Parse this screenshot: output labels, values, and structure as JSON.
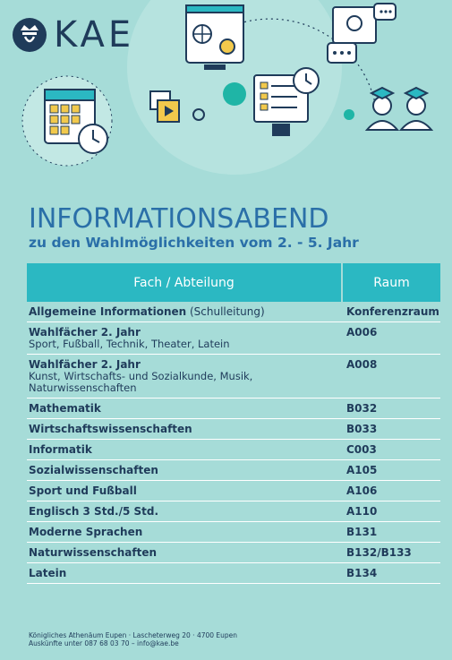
{
  "logo": {
    "text": "KAE",
    "emblem": "crown-emblem-icon"
  },
  "title": "INFORMATIONSABEND",
  "subtitle": "zu den Wahlmöglichkeiten vom 2. - 5. Jahr",
  "table": {
    "headers": {
      "fach": "Fach / Abteilung",
      "raum": "Raum"
    },
    "rows": [
      {
        "fach": "Allgemeine Informationen",
        "fach_extra": " (Schulleitung)",
        "desc": "",
        "raum": "Konferenzraum"
      },
      {
        "fach": "Wahlfächer 2. Jahr",
        "fach_extra": "",
        "desc": "Sport, Fußball, Technik, Theater, Latein",
        "raum": "A006"
      },
      {
        "fach": "Wahlfächer 2. Jahr",
        "fach_extra": "",
        "desc": "Kunst, Wirtschafts- und Sozialkunde, Musik, Naturwissenschaften",
        "raum": "A008"
      },
      {
        "fach": "Mathematik",
        "fach_extra": "",
        "desc": "",
        "raum": "B032"
      },
      {
        "fach": "Wirtschaftswissenschaften",
        "fach_extra": "",
        "desc": "",
        "raum": "B033"
      },
      {
        "fach": "Informatik",
        "fach_extra": "",
        "desc": "",
        "raum": "C003"
      },
      {
        "fach": "Sozialwissenschaften",
        "fach_extra": "",
        "desc": "",
        "raum": "A105"
      },
      {
        "fach": "Sport und Fußball",
        "fach_extra": "",
        "desc": "",
        "raum": "A106"
      },
      {
        "fach": "Englisch 3 Std./5 Std.",
        "fach_extra": "",
        "desc": "",
        "raum": "A110"
      },
      {
        "fach": "Moderne Sprachen",
        "fach_extra": "",
        "desc": "",
        "raum": "B131"
      },
      {
        "fach": "Naturwissenschaften",
        "fach_extra": "",
        "desc": "",
        "raum": "B132/B133"
      },
      {
        "fach": "Latein",
        "fach_extra": "",
        "desc": "",
        "raum": "B134"
      }
    ]
  },
  "footer": {
    "line1": "Königliches Athenäum Eupen · Lascheterweg 20 · 4700 Eupen",
    "line2": "Auskünfte unter 087 68 03 70 – info@kae.be"
  },
  "colors": {
    "background": "#a6dcd8",
    "accent": "#2bb8c2",
    "navy": "#1f3b5a",
    "title_blue": "#2a6fa8"
  }
}
